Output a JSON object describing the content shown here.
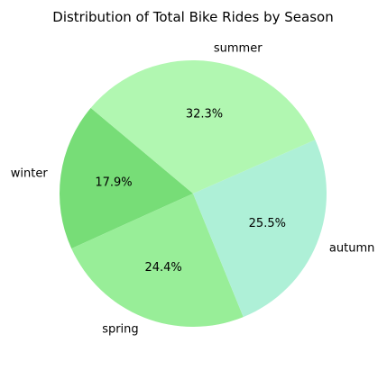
{
  "chart_data": {
    "type": "pie",
    "title": "Distribution of Total Bike Rides by Season",
    "slices": [
      {
        "label": "winter",
        "value": 17.9,
        "pct_label": "17.9%",
        "color": "#77dd77"
      },
      {
        "label": "spring",
        "value": 24.4,
        "pct_label": "24.4%",
        "color": "#98ee98"
      },
      {
        "label": "autumn",
        "value": 25.5,
        "pct_label": "25.5%",
        "color": "#aef0d7"
      },
      {
        "label": "summer",
        "value": 32.3,
        "pct_label": "32.3%",
        "color": "#b1f7b1"
      }
    ],
    "start_angle_deg": 140,
    "direction": "counterclockwise",
    "legend": "none"
  }
}
